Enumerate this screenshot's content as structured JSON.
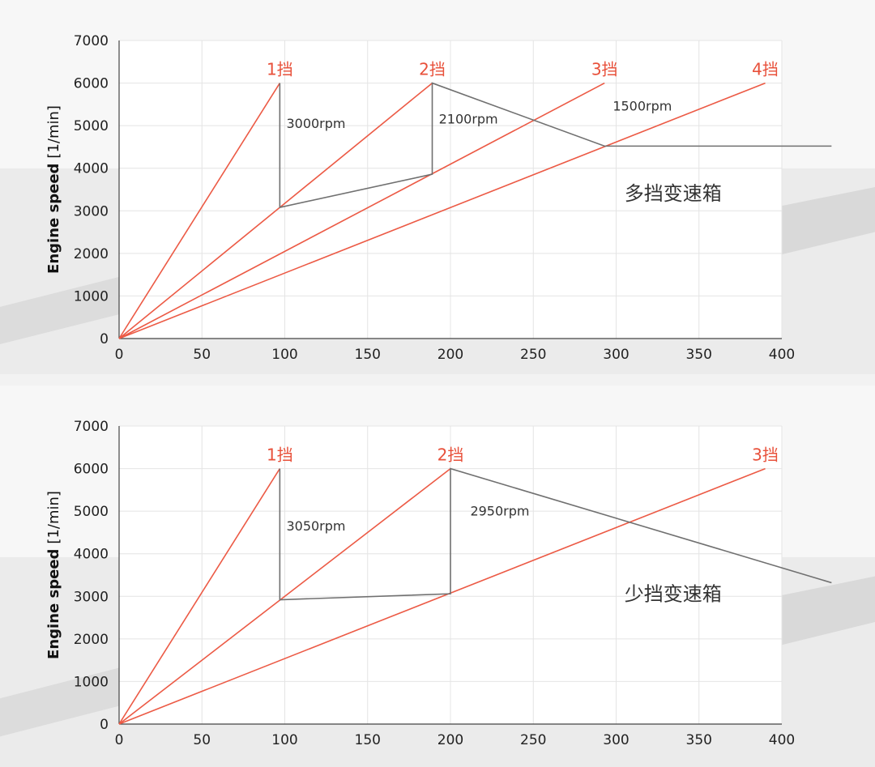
{
  "colors": {
    "gear_line": "#ec5a45",
    "gear_label": "#e8503a",
    "shift_line": "#707070",
    "grid": "#e4e4e4",
    "axis": "#444444",
    "plot_bg": "#ffffff",
    "page_bg": "#f2f2f2"
  },
  "chart_data": [
    {
      "type": "line",
      "title": "多挡变速箱",
      "ylabel": "Engine speed",
      "ylabel_unit": "[1/min]",
      "xlabel": "",
      "xlim": [
        0,
        400
      ],
      "ylim": [
        0,
        7000
      ],
      "x_ticks": [
        "0",
        "50",
        "100",
        "150",
        "200",
        "250",
        "300",
        "350",
        "400"
      ],
      "y_ticks": [
        "0",
        "1000",
        "2000",
        "3000",
        "4000",
        "5000",
        "6000",
        "7000"
      ],
      "grid": true,
      "series": [
        {
          "name": "1挡",
          "x": [
            0,
            97
          ],
          "y": [
            0,
            6000
          ]
        },
        {
          "name": "2挡",
          "x": [
            0,
            189
          ],
          "y": [
            0,
            6000
          ]
        },
        {
          "name": "3挡",
          "x": [
            0,
            293
          ],
          "y": [
            0,
            6000
          ]
        },
        {
          "name": "4挡",
          "x": [
            0,
            390
          ],
          "y": [
            0,
            6000
          ]
        }
      ],
      "shift_path": {
        "x": [
          97,
          97,
          189,
          189,
          293,
          293,
          430
        ],
        "y": [
          6000,
          3080,
          3860,
          6000,
          4520,
          4520,
          4520
        ]
      },
      "annotations": [
        {
          "text": "3000rpm",
          "x": 99,
          "y": 4950
        },
        {
          "text": "2100rpm",
          "x": 191,
          "y": 5050
        },
        {
          "text": "1500rpm",
          "x": 296,
          "y": 5350
        }
      ],
      "label_pos": {
        "x": 305,
        "y": 3250
      }
    },
    {
      "type": "line",
      "title": "少挡变速箱",
      "ylabel": "Engine speed",
      "ylabel_unit": "[1/min]",
      "xlabel": "",
      "xlim": [
        0,
        400
      ],
      "ylim": [
        0,
        7000
      ],
      "x_ticks": [
        "0",
        "50",
        "100",
        "150",
        "200",
        "250",
        "300",
        "350",
        "400"
      ],
      "y_ticks": [
        "0",
        "1000",
        "2000",
        "3000",
        "4000",
        "5000",
        "6000",
        "7000"
      ],
      "grid": true,
      "series": [
        {
          "name": "1挡",
          "x": [
            0,
            97
          ],
          "y": [
            0,
            6000
          ]
        },
        {
          "name": "2挡",
          "x": [
            0,
            200
          ],
          "y": [
            0,
            6000
          ]
        },
        {
          "name": "3挡",
          "x": [
            0,
            390
          ],
          "y": [
            0,
            6000
          ]
        }
      ],
      "shift_path": {
        "x": [
          97,
          97,
          200,
          200,
          430
        ],
        "y": [
          6000,
          2920,
          3060,
          6000,
          3320
        ]
      },
      "annotations": [
        {
          "text": "3050rpm",
          "x": 99,
          "y": 4550
        },
        {
          "text": "2950rpm",
          "x": 210,
          "y": 4900
        }
      ],
      "label_pos": {
        "x": 305,
        "y": 2900
      }
    }
  ]
}
